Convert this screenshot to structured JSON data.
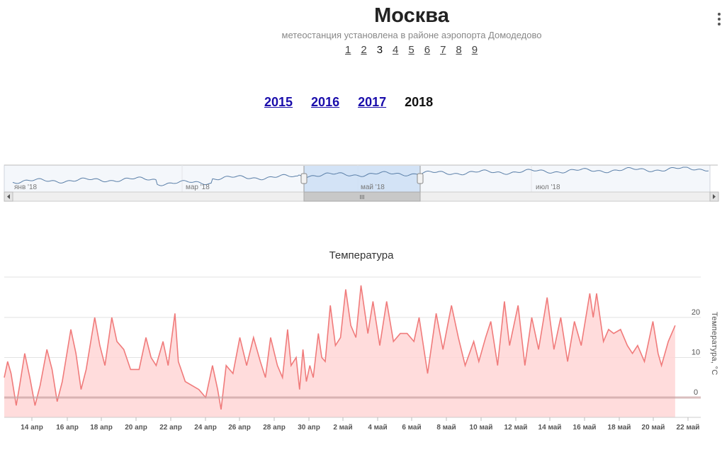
{
  "header": {
    "city": "Москва",
    "subtitle": "метеостанция установлена в районе аэропорта Домодедово",
    "pages": [
      "1",
      "2",
      "3",
      "4",
      "5",
      "6",
      "7",
      "8",
      "9"
    ],
    "current_page": "3"
  },
  "years": {
    "items": [
      "2015",
      "2016",
      "2017",
      "2018"
    ],
    "current": "2018"
  },
  "navigator": {
    "labels": [
      "янв '18",
      "мар '18",
      "май '18",
      "июл '18"
    ],
    "selection_handle": "III",
    "line_color": "#5a7fa8",
    "selection_color": "#cfe0f5"
  },
  "chart_data": {
    "type": "area",
    "title": "Температура",
    "ylabel": "Температура, °C",
    "yticks": [
      0,
      10,
      20
    ],
    "ylim": [
      -5,
      30
    ],
    "xticks": [
      "14 апр",
      "16 апр",
      "18 апр",
      "20 апр",
      "22 апр",
      "24 апр",
      "26 апр",
      "28 апр",
      "30 апр",
      "2 май",
      "4 май",
      "6 май",
      "8 май",
      "10 май",
      "12 май",
      "14 май",
      "16 май",
      "18 май",
      "20 май",
      "22 май"
    ],
    "x_days_range": [
      12.8,
      23.1
    ],
    "line_color": "#f07b7b",
    "fill_color": "#ffd6d6",
    "series": [
      {
        "values": [
          [
            12.8,
            5
          ],
          [
            12.9,
            9
          ],
          [
            13.0,
            6
          ],
          [
            13.15,
            -2
          ],
          [
            13.25,
            3
          ],
          [
            13.4,
            11
          ],
          [
            13.55,
            5
          ],
          [
            13.7,
            -2
          ],
          [
            13.85,
            3
          ],
          [
            14.05,
            12
          ],
          [
            14.2,
            7
          ],
          [
            14.35,
            -1
          ],
          [
            14.5,
            4
          ],
          [
            14.75,
            17
          ],
          [
            14.9,
            11
          ],
          [
            15.05,
            2
          ],
          [
            15.2,
            7
          ],
          [
            15.45,
            20
          ],
          [
            15.6,
            13
          ],
          [
            15.75,
            8
          ],
          [
            15.95,
            20
          ],
          [
            16.1,
            14
          ],
          [
            16.3,
            12
          ],
          [
            16.5,
            7
          ],
          [
            16.75,
            7
          ],
          [
            16.95,
            15
          ],
          [
            17.1,
            10
          ],
          [
            17.25,
            8
          ],
          [
            17.45,
            14
          ],
          [
            17.6,
            8
          ],
          [
            17.8,
            21
          ],
          [
            17.9,
            9
          ],
          [
            18.1,
            4
          ],
          [
            18.3,
            3
          ],
          [
            18.5,
            2
          ],
          [
            18.7,
            0
          ],
          [
            18.9,
            8
          ],
          [
            19.05,
            2
          ],
          [
            19.15,
            -3
          ],
          [
            19.3,
            8
          ],
          [
            19.5,
            6
          ],
          [
            19.7,
            15
          ],
          [
            19.9,
            8
          ],
          [
            20.1,
            15
          ],
          [
            20.3,
            9
          ],
          [
            20.45,
            5
          ],
          [
            20.6,
            15
          ],
          [
            20.8,
            8
          ],
          [
            20.95,
            5
          ],
          [
            21.1,
            17
          ],
          [
            21.2,
            8
          ],
          [
            21.35,
            10
          ],
          [
            21.45,
            2
          ],
          [
            21.55,
            12
          ],
          [
            21.65,
            4
          ],
          [
            21.75,
            8
          ],
          [
            21.85,
            5
          ],
          [
            22.0,
            16
          ],
          [
            22.1,
            10
          ],
          [
            22.2,
            9
          ],
          [
            22.35,
            23
          ],
          [
            22.5,
            13
          ],
          [
            22.65,
            15
          ],
          [
            22.8,
            27
          ],
          [
            22.95,
            18
          ],
          [
            23.1,
            15
          ],
          [
            23.25,
            28
          ],
          [
            23.45,
            16
          ],
          [
            23.6,
            24
          ],
          [
            23.8,
            13
          ],
          [
            24.0,
            24
          ],
          [
            24.2,
            14
          ],
          [
            24.4,
            16
          ],
          [
            24.6,
            16
          ],
          [
            24.8,
            14
          ],
          [
            24.95,
            20
          ],
          [
            25.2,
            6
          ],
          [
            25.45,
            21
          ],
          [
            25.65,
            12
          ],
          [
            25.9,
            23
          ],
          [
            26.1,
            15
          ],
          [
            26.3,
            8
          ],
          [
            26.55,
            14
          ],
          [
            26.7,
            9
          ],
          [
            26.9,
            15
          ],
          [
            27.05,
            19
          ],
          [
            27.25,
            8
          ],
          [
            27.45,
            24
          ],
          [
            27.6,
            13
          ],
          [
            27.85,
            23
          ],
          [
            28.05,
            8
          ],
          [
            28.25,
            20
          ],
          [
            28.45,
            12
          ],
          [
            28.7,
            25
          ],
          [
            28.9,
            12
          ],
          [
            29.1,
            20
          ],
          [
            29.3,
            9
          ],
          [
            29.5,
            19
          ],
          [
            29.7,
            13
          ],
          [
            29.95,
            26
          ],
          [
            30.05,
            20
          ],
          [
            30.15,
            26
          ],
          [
            30.35,
            14
          ],
          [
            30.5,
            17
          ],
          [
            30.65,
            16
          ],
          [
            30.85,
            17
          ],
          [
            31.05,
            13
          ],
          [
            31.2,
            11
          ],
          [
            31.35,
            13
          ],
          [
            31.55,
            9
          ],
          [
            31.8,
            19
          ],
          [
            31.95,
            11
          ],
          [
            32.05,
            8
          ],
          [
            32.25,
            14
          ],
          [
            32.45,
            18
          ]
        ]
      }
    ]
  }
}
